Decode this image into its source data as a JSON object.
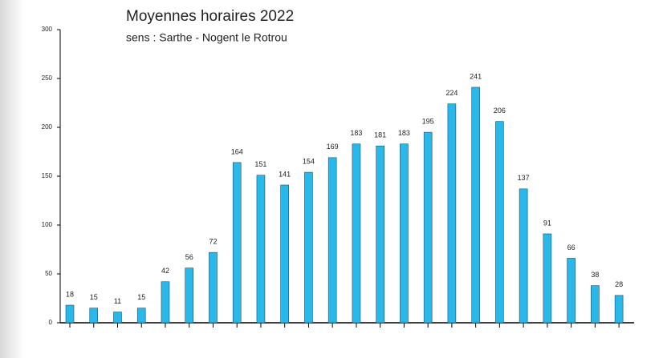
{
  "chart_data": {
    "type": "bar",
    "title": "Moyennes horaires 2022",
    "subtitle": "sens : Sarthe - Nogent le Rotrou",
    "categories": [
      null,
      null,
      null,
      null,
      null,
      null,
      null,
      null,
      null,
      null,
      null,
      null,
      null,
      null,
      null,
      null,
      null,
      null,
      null,
      null,
      null,
      null,
      null,
      null
    ],
    "values": [
      18,
      15,
      11,
      15,
      42,
      56,
      72,
      164,
      151,
      141,
      154,
      169,
      183,
      181,
      183,
      195,
      224,
      241,
      206,
      137,
      91,
      66,
      38,
      28
    ],
    "color": "#29b8ea",
    "ylim": [
      0,
      300
    ],
    "yticks": [
      0,
      50,
      100,
      150,
      200,
      250,
      300
    ],
    "grid": false
  }
}
